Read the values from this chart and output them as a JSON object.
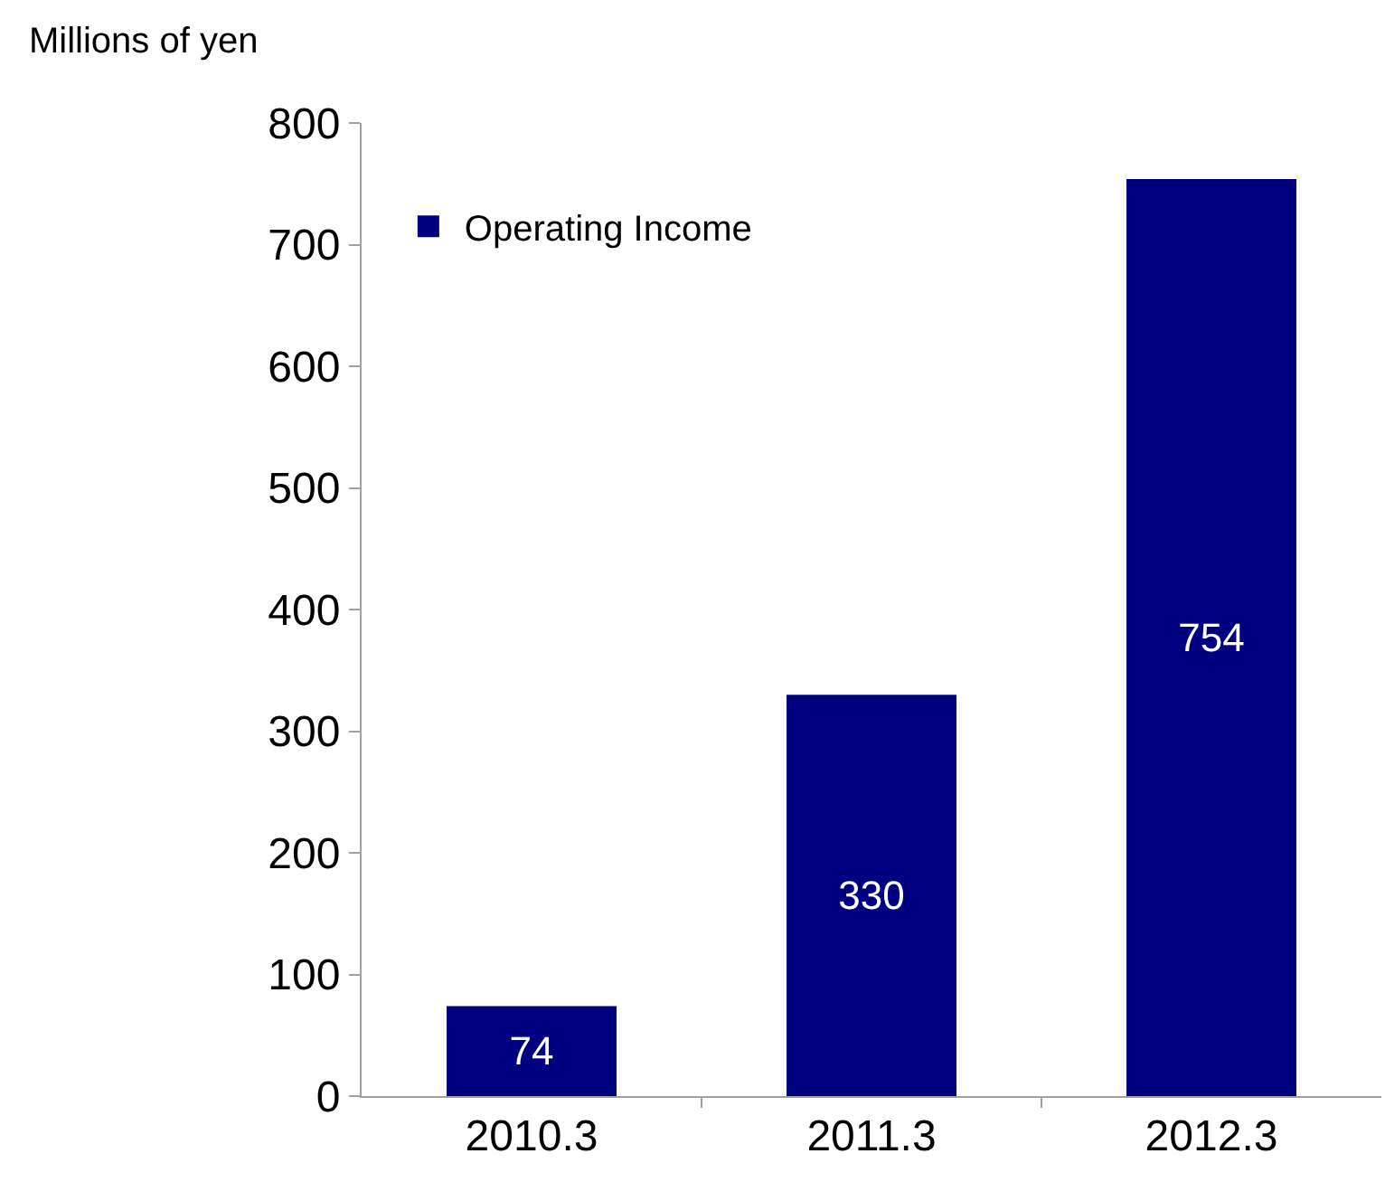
{
  "chart_data": {
    "type": "bar",
    "ylabel": "Millions of yen",
    "categories": [
      "2010.3",
      "2011.3",
      "2012.3"
    ],
    "series": [
      {
        "name": "Operating Income",
        "color": "#000080",
        "values": [
          74,
          330,
          754
        ]
      }
    ],
    "ylim": [
      0,
      800
    ],
    "yticks": [
      0,
      100,
      200,
      300,
      400,
      500,
      600,
      700,
      800
    ],
    "data_labels": true,
    "legend": "top left"
  }
}
